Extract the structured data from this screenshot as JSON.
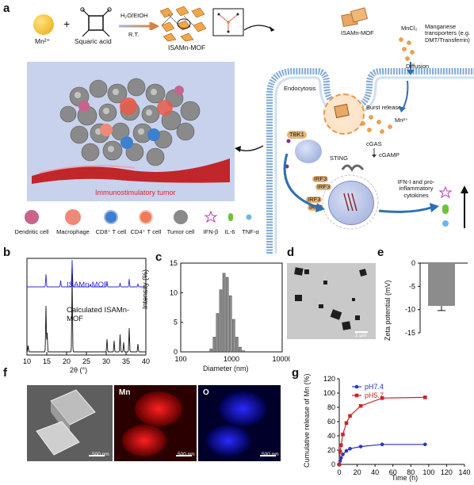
{
  "panel_labels": {
    "a": "a",
    "b": "b",
    "c": "c",
    "d": "d",
    "e": "e",
    "f": "f",
    "g": "g"
  },
  "panel_a": {
    "mn_label": "Mn²⁺",
    "plus": "+",
    "squaric_label": "Squaric acid",
    "solvent": "H₂O/EtOH",
    "rt": "R.T.",
    "mof_label": "ISAMn-MOF",
    "mof_top_label": "ISAMn-MOF",
    "mncl2": "MnCl₂",
    "transporters": "Manganese transporters (e.g. DMT/Transferrin)",
    "endocytosis": "Endocytosis",
    "diffusion": "Diffusion",
    "burst_release": "Burst release",
    "mn2plus": "Mn²⁺",
    "tbk1": "TBK1",
    "cgas": "cGAS",
    "cgamp": "cGAMP",
    "sting": "STING",
    "irf3": "IRF3",
    "ifn": "IFN-I and pro-inflammatory cytokines",
    "tumor_label": "Immunostimulatory tumor",
    "legend": [
      "Dendritic cell",
      "Macrophage",
      "CD8⁺ T cell",
      "CD4⁺ T cell",
      "Tumor cell",
      "IFN-β",
      "IL-6",
      "TNF-α"
    ],
    "colors": {
      "mn": "#f2c230",
      "mof": "#e8a867",
      "membrane": "#7fa9d6",
      "tumor_bg": "#c8d2ec",
      "arrow_blue": "#2e6fb5",
      "tumor_text": "#d62a2a"
    }
  },
  "panel_b": {
    "xlabel": "2θ (°)",
    "series_labels": [
      "ISAMn-MOF",
      "Calculated ISAMn-MOF"
    ],
    "xticks": [
      "10",
      "15",
      "20",
      "25",
      "30",
      "35",
      "40"
    ]
  },
  "panel_c": {
    "ylabel": "Intensity (%)",
    "xlabel": "Diameter (nm)",
    "yticks": [
      "0",
      "5",
      "10",
      "15"
    ],
    "xticks": [
      "100",
      "1000",
      "10000"
    ]
  },
  "panel_d": {
    "scale": "1 μm"
  },
  "panel_e": {
    "ylabel": "Zeta potential (mV)",
    "yticks": [
      "0",
      "-5",
      "-10",
      "-15"
    ]
  },
  "panel_f": {
    "labels": [
      "Mn",
      "O"
    ],
    "scales": [
      "500 nm",
      "500 nm",
      "500 nm"
    ]
  },
  "panel_g": {
    "ylabel": "Cumulative release of Mn (%)",
    "xlabel": "Time (h)",
    "yticks": [
      "0",
      "20",
      "40",
      "60",
      "80",
      "100",
      "120"
    ],
    "xticks": [
      "0",
      "20",
      "40",
      "60",
      "80",
      "100",
      "120",
      "140"
    ]
  },
  "chart_data": [
    {
      "type": "line",
      "panel": "b",
      "xlabel": "2θ (°)",
      "ylabel": "",
      "xlim": [
        10,
        40
      ],
      "series": [
        {
          "name": "ISAMn-MOF",
          "color": "#2b2bd6",
          "peaks_2theta": [
            14.8,
            18.5,
            21.4,
            26.0,
            30.2,
            33.5,
            35.8,
            38.0
          ]
        },
        {
          "name": "Calculated ISAMn-MOF",
          "color": "#111111",
          "peaks_2theta": [
            10.3,
            14.8,
            15.1,
            21.4,
            30.2,
            32.0,
            33.5,
            34.4,
            35.8,
            38.0
          ]
        }
      ]
    },
    {
      "type": "bar",
      "panel": "c",
      "xlabel": "Diameter (nm)",
      "ylabel": "Intensity (%)",
      "xscale": "log",
      "xlim": [
        100,
        10000
      ],
      "ylim": [
        0,
        15
      ],
      "x": [
        396,
        459,
        531,
        615,
        712,
        825,
        955,
        1106,
        1281,
        1484,
        1718
      ],
      "values": [
        0.5,
        2.5,
        6.5,
        10.5,
        13.3,
        12.6,
        9.5,
        5.5,
        2.5,
        0.8,
        0.2
      ]
    },
    {
      "type": "bar",
      "panel": "e",
      "ylabel": "Zeta potential (mV)",
      "ylim": [
        -15,
        0
      ],
      "values": [
        -9.2
      ],
      "error": [
        1.0
      ]
    },
    {
      "type": "line",
      "panel": "g",
      "xlabel": "Time (h)",
      "ylabel": "Cumulative release of Mn (%)",
      "xlim": [
        0,
        140
      ],
      "ylim": [
        0,
        120
      ],
      "series": [
        {
          "name": "pH7.4",
          "color": "#2a34c8",
          "x": [
            0,
            1,
            2,
            4,
            8,
            12,
            24,
            48,
            96
          ],
          "y": [
            0,
            5,
            9,
            14,
            19,
            22,
            25,
            28,
            28
          ]
        },
        {
          "name": "pH5.7",
          "color": "#c8262a",
          "x": [
            0,
            1,
            2,
            4,
            8,
            12,
            24,
            48,
            96
          ],
          "y": [
            0,
            18,
            27,
            42,
            58,
            68,
            82,
            93,
            94
          ]
        }
      ]
    }
  ]
}
